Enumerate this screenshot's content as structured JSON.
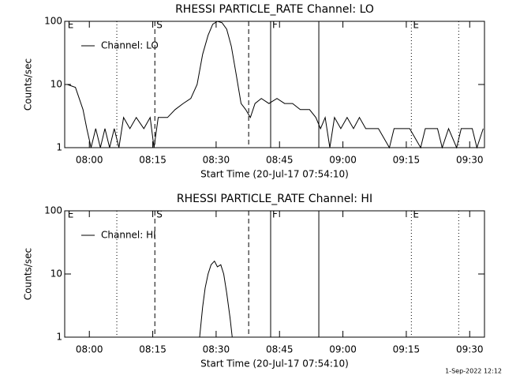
{
  "footer": "1-Sep-2022 12:12",
  "chart_data": [
    {
      "type": "line",
      "title": "RHESSI PARTICLE_RATE Channel: LO",
      "xlabel": "Start Time (20-Jul-17 07:54:10)",
      "ylabel": "Counts/sec",
      "ylog": true,
      "ylim": [
        1,
        100
      ],
      "yticks": [
        1,
        10,
        100
      ],
      "xlim": [
        474.17,
        573.5
      ],
      "xticks": [
        {
          "value": 480,
          "label": "08:00"
        },
        {
          "value": 495,
          "label": "08:15"
        },
        {
          "value": 510,
          "label": "08:30"
        },
        {
          "value": 525,
          "label": "08:45"
        },
        {
          "value": 540,
          "label": "09:00"
        },
        {
          "value": 555,
          "label": "09:15"
        },
        {
          "value": 570,
          "label": "09:30"
        }
      ],
      "legend": "upper left",
      "vlines": [
        {
          "x": 486.5,
          "style": "dotted"
        },
        {
          "x": 495.5,
          "style": "dashed"
        },
        {
          "x": 517.7,
          "style": "dashed"
        },
        {
          "x": 522.9,
          "style": "solid"
        },
        {
          "x": 534.3,
          "style": "solid"
        },
        {
          "x": 556.2,
          "style": "dotted"
        },
        {
          "x": 567.4,
          "style": "dotted"
        }
      ],
      "flags": [
        {
          "x": 474.5,
          "label": "E"
        },
        {
          "x": 495.5,
          "label": "S"
        },
        {
          "x": 522.9,
          "label": "F"
        },
        {
          "x": 556.2,
          "label": "E"
        }
      ],
      "x": [
        474.8,
        476.7,
        477.6,
        478.5,
        479.4,
        480.4,
        481.5,
        482.6,
        483.7,
        484.8,
        485.9,
        487.0,
        488.1,
        489.6,
        491.1,
        492.9,
        494.4,
        495.3,
        496.3,
        498.5,
        500.3,
        502.2,
        504.0,
        505.5,
        506.8,
        508.1,
        509.2,
        510.3,
        511.4,
        512.5,
        513.6,
        514.7,
        515.9,
        517.0,
        518.1,
        519.2,
        520.7,
        522.5,
        524.4,
        526.2,
        528.1,
        529.9,
        532.1,
        533.6,
        534.7,
        535.8,
        536.9,
        538.0,
        539.5,
        541.0,
        542.5,
        543.9,
        545.4,
        548.4,
        551.0,
        552.1,
        555.8,
        558.4,
        559.5,
        562.4,
        563.5,
        565.0,
        566.9,
        568.0,
        570.6,
        571.7,
        573.2
      ],
      "series": [
        {
          "name": "Channel: LO",
          "color": "#000000",
          "values": [
            10,
            9,
            6,
            4,
            2,
            1,
            2,
            1,
            2,
            1,
            2,
            1,
            3,
            2,
            3,
            2,
            3,
            1,
            3,
            3,
            4,
            5,
            6,
            10,
            30,
            60,
            90,
            100,
            95,
            75,
            40,
            15,
            5,
            4,
            3,
            5,
            6,
            5,
            6,
            5,
            5,
            4,
            4,
            3,
            2,
            3,
            1,
            3,
            2,
            3,
            2,
            3,
            2,
            2,
            1,
            2,
            2,
            1,
            2,
            2,
            1,
            2,
            1,
            2,
            2,
            1,
            2
          ]
        }
      ]
    },
    {
      "type": "line",
      "title": "RHESSI PARTICLE_RATE Channel: HI",
      "xlabel": "Start Time (20-Jul-17 07:54:10)",
      "ylabel": "Counts/sec",
      "ylog": true,
      "ylim": [
        1,
        100
      ],
      "yticks": [
        1,
        10,
        100
      ],
      "xlim": [
        474.17,
        573.5
      ],
      "xticks": [
        {
          "value": 480,
          "label": "08:00"
        },
        {
          "value": 495,
          "label": "08:15"
        },
        {
          "value": 510,
          "label": "08:30"
        },
        {
          "value": 525,
          "label": "08:45"
        },
        {
          "value": 540,
          "label": "09:00"
        },
        {
          "value": 555,
          "label": "09:15"
        },
        {
          "value": 570,
          "label": "09:30"
        }
      ],
      "legend": "upper left",
      "vlines": [
        {
          "x": 486.5,
          "style": "dotted"
        },
        {
          "x": 495.5,
          "style": "dashed"
        },
        {
          "x": 517.7,
          "style": "dashed"
        },
        {
          "x": 522.9,
          "style": "solid"
        },
        {
          "x": 534.3,
          "style": "solid"
        },
        {
          "x": 556.2,
          "style": "dotted"
        },
        {
          "x": 567.4,
          "style": "dotted"
        }
      ],
      "flags": [
        {
          "x": 474.5,
          "label": "E"
        },
        {
          "x": 495.5,
          "label": "S"
        },
        {
          "x": 522.9,
          "label": "F"
        },
        {
          "x": 556.2,
          "label": "E"
        }
      ],
      "x": [
        506.1,
        506.8,
        507.4,
        508.1,
        508.8,
        509.6,
        510.3,
        511.1,
        511.8,
        512.5,
        513.3,
        513.8
      ],
      "series": [
        {
          "name": "Channel: HI",
          "color": "#000000",
          "values": [
            1,
            3,
            6,
            10,
            14,
            16,
            13,
            14,
            10,
            5,
            2,
            1
          ]
        }
      ]
    }
  ]
}
